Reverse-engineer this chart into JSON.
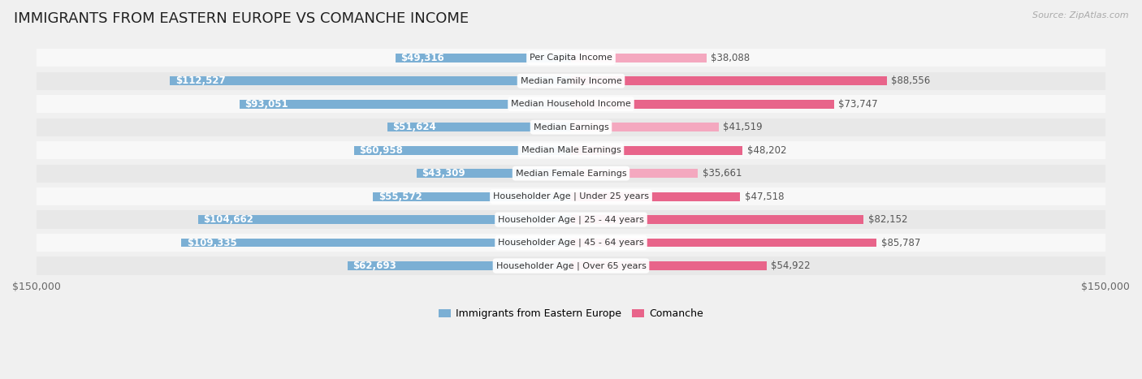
{
  "title": "IMMIGRANTS FROM EASTERN EUROPE VS COMANCHE INCOME",
  "source": "Source: ZipAtlas.com",
  "categories": [
    "Per Capita Income",
    "Median Family Income",
    "Median Household Income",
    "Median Earnings",
    "Median Male Earnings",
    "Median Female Earnings",
    "Householder Age | Under 25 years",
    "Householder Age | 25 - 44 years",
    "Householder Age | 45 - 64 years",
    "Householder Age | Over 65 years"
  ],
  "left_values": [
    49316,
    112527,
    93051,
    51624,
    60958,
    43309,
    55572,
    104662,
    109335,
    62693
  ],
  "right_values": [
    38088,
    88556,
    73747,
    41519,
    48202,
    35661,
    47518,
    82152,
    85787,
    54922
  ],
  "left_color_large": "#7bafd4",
  "left_color_small": "#aacce8",
  "right_color_large": "#e8648a",
  "right_color_small": "#f4a8bf",
  "max_value": 150000,
  "legend_left": "Immigrants from Eastern Europe",
  "legend_right": "Comanche",
  "background_color": "#f0f0f0",
  "row_bg_even": "#f8f8f8",
  "row_bg_odd": "#e8e8e8",
  "label_fontsize": 8.5,
  "category_fontsize": 8.0,
  "title_fontsize": 13,
  "inside_threshold": 0.28
}
